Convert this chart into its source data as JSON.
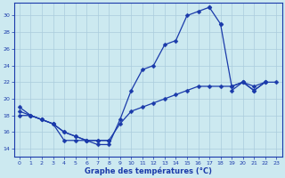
{
  "background_color": "#cce9f0",
  "grid_color": "#aaccdd",
  "line_color": "#1a3aaa",
  "title": "Graphe des températures (°C)",
  "xlim": [
    -0.5,
    23.5
  ],
  "ylim": [
    13,
    31.5
  ],
  "yticks": [
    14,
    16,
    18,
    20,
    22,
    24,
    26,
    28,
    30
  ],
  "xticks": [
    0,
    1,
    2,
    3,
    4,
    5,
    6,
    7,
    8,
    9,
    10,
    11,
    12,
    13,
    14,
    15,
    16,
    17,
    18,
    19,
    20,
    21,
    22,
    23
  ],
  "hours": [
    0,
    1,
    2,
    3,
    4,
    5,
    6,
    7,
    8,
    9,
    10,
    11,
    12,
    13,
    14,
    15,
    16,
    17,
    18,
    19,
    20,
    21,
    22,
    23
  ],
  "line_temp": [
    19,
    18,
    17.5,
    17,
    15,
    15,
    15,
    14.5,
    14.5,
    17.5,
    21,
    23.5,
    24,
    26.5,
    27,
    30,
    30.5,
    31,
    null,
    null,
    null,
    null,
    null,
    null
  ],
  "line_drop": [
    null,
    null,
    null,
    null,
    null,
    null,
    null,
    null,
    null,
    null,
    null,
    null,
    null,
    null,
    null,
    null,
    null,
    31,
    29,
    null,
    null,
    null,
    null,
    null
  ],
  "line_tri1": [
    null,
    null,
    null,
    null,
    null,
    null,
    null,
    null,
    null,
    null,
    null,
    null,
    null,
    null,
    null,
    null,
    null,
    null,
    29,
    21.5,
    22,
    21,
    22,
    null
  ],
  "line_base1": [
    18,
    18,
    17.5,
    17,
    16,
    15.5,
    15,
    15,
    15,
    17,
    18.5,
    19,
    19.5,
    20,
    20.5,
    21,
    21.5,
    21.5,
    21.5,
    21.5,
    22,
    21.5,
    22,
    null
  ],
  "line_base2": [
    18.5,
    18,
    17.5,
    17,
    16,
    15.5,
    15,
    15,
    15,
    null,
    null,
    null,
    null,
    null,
    null,
    null,
    null,
    null,
    null,
    null,
    null,
    null,
    null,
    null
  ],
  "line_end": [
    null,
    null,
    null,
    null,
    null,
    null,
    null,
    null,
    null,
    null,
    null,
    null,
    null,
    null,
    null,
    null,
    null,
    null,
    null,
    21,
    22,
    21,
    22,
    22
  ]
}
